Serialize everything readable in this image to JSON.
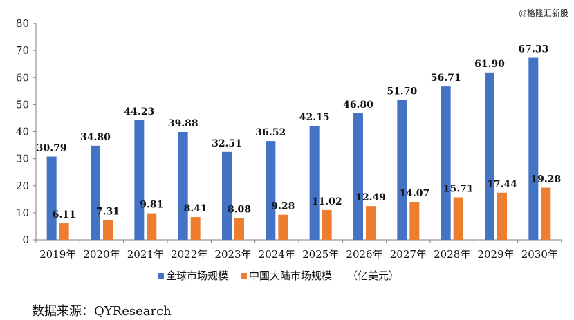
{
  "watermark": "@格隆汇新股",
  "source": "数据来源：QYResearch",
  "legend_unit": "（亿美元）",
  "chart_data": {
    "type": "bar",
    "categories": [
      "2019年",
      "2020年",
      "2021年",
      "2022年",
      "2023年",
      "2024年",
      "2025年",
      "2026年",
      "2027年",
      "2028年",
      "2029年",
      "2030年"
    ],
    "series": [
      {
        "name": "全球市场规模",
        "color": "#4472C4",
        "values": [
          30.79,
          34.8,
          44.23,
          39.88,
          32.51,
          36.52,
          42.15,
          46.8,
          51.7,
          56.71,
          61.9,
          67.33
        ]
      },
      {
        "name": "中国大陆市场规模",
        "color": "#ED7D31",
        "values": [
          6.11,
          7.31,
          9.81,
          8.41,
          8.08,
          9.28,
          11.02,
          12.49,
          14.07,
          15.71,
          17.44,
          19.28
        ]
      }
    ],
    "yticks": [
      0,
      10,
      20,
      30,
      40,
      50,
      60,
      70,
      80
    ],
    "ylim": [
      0,
      80
    ],
    "legend_position": "bottom",
    "grid": false
  }
}
